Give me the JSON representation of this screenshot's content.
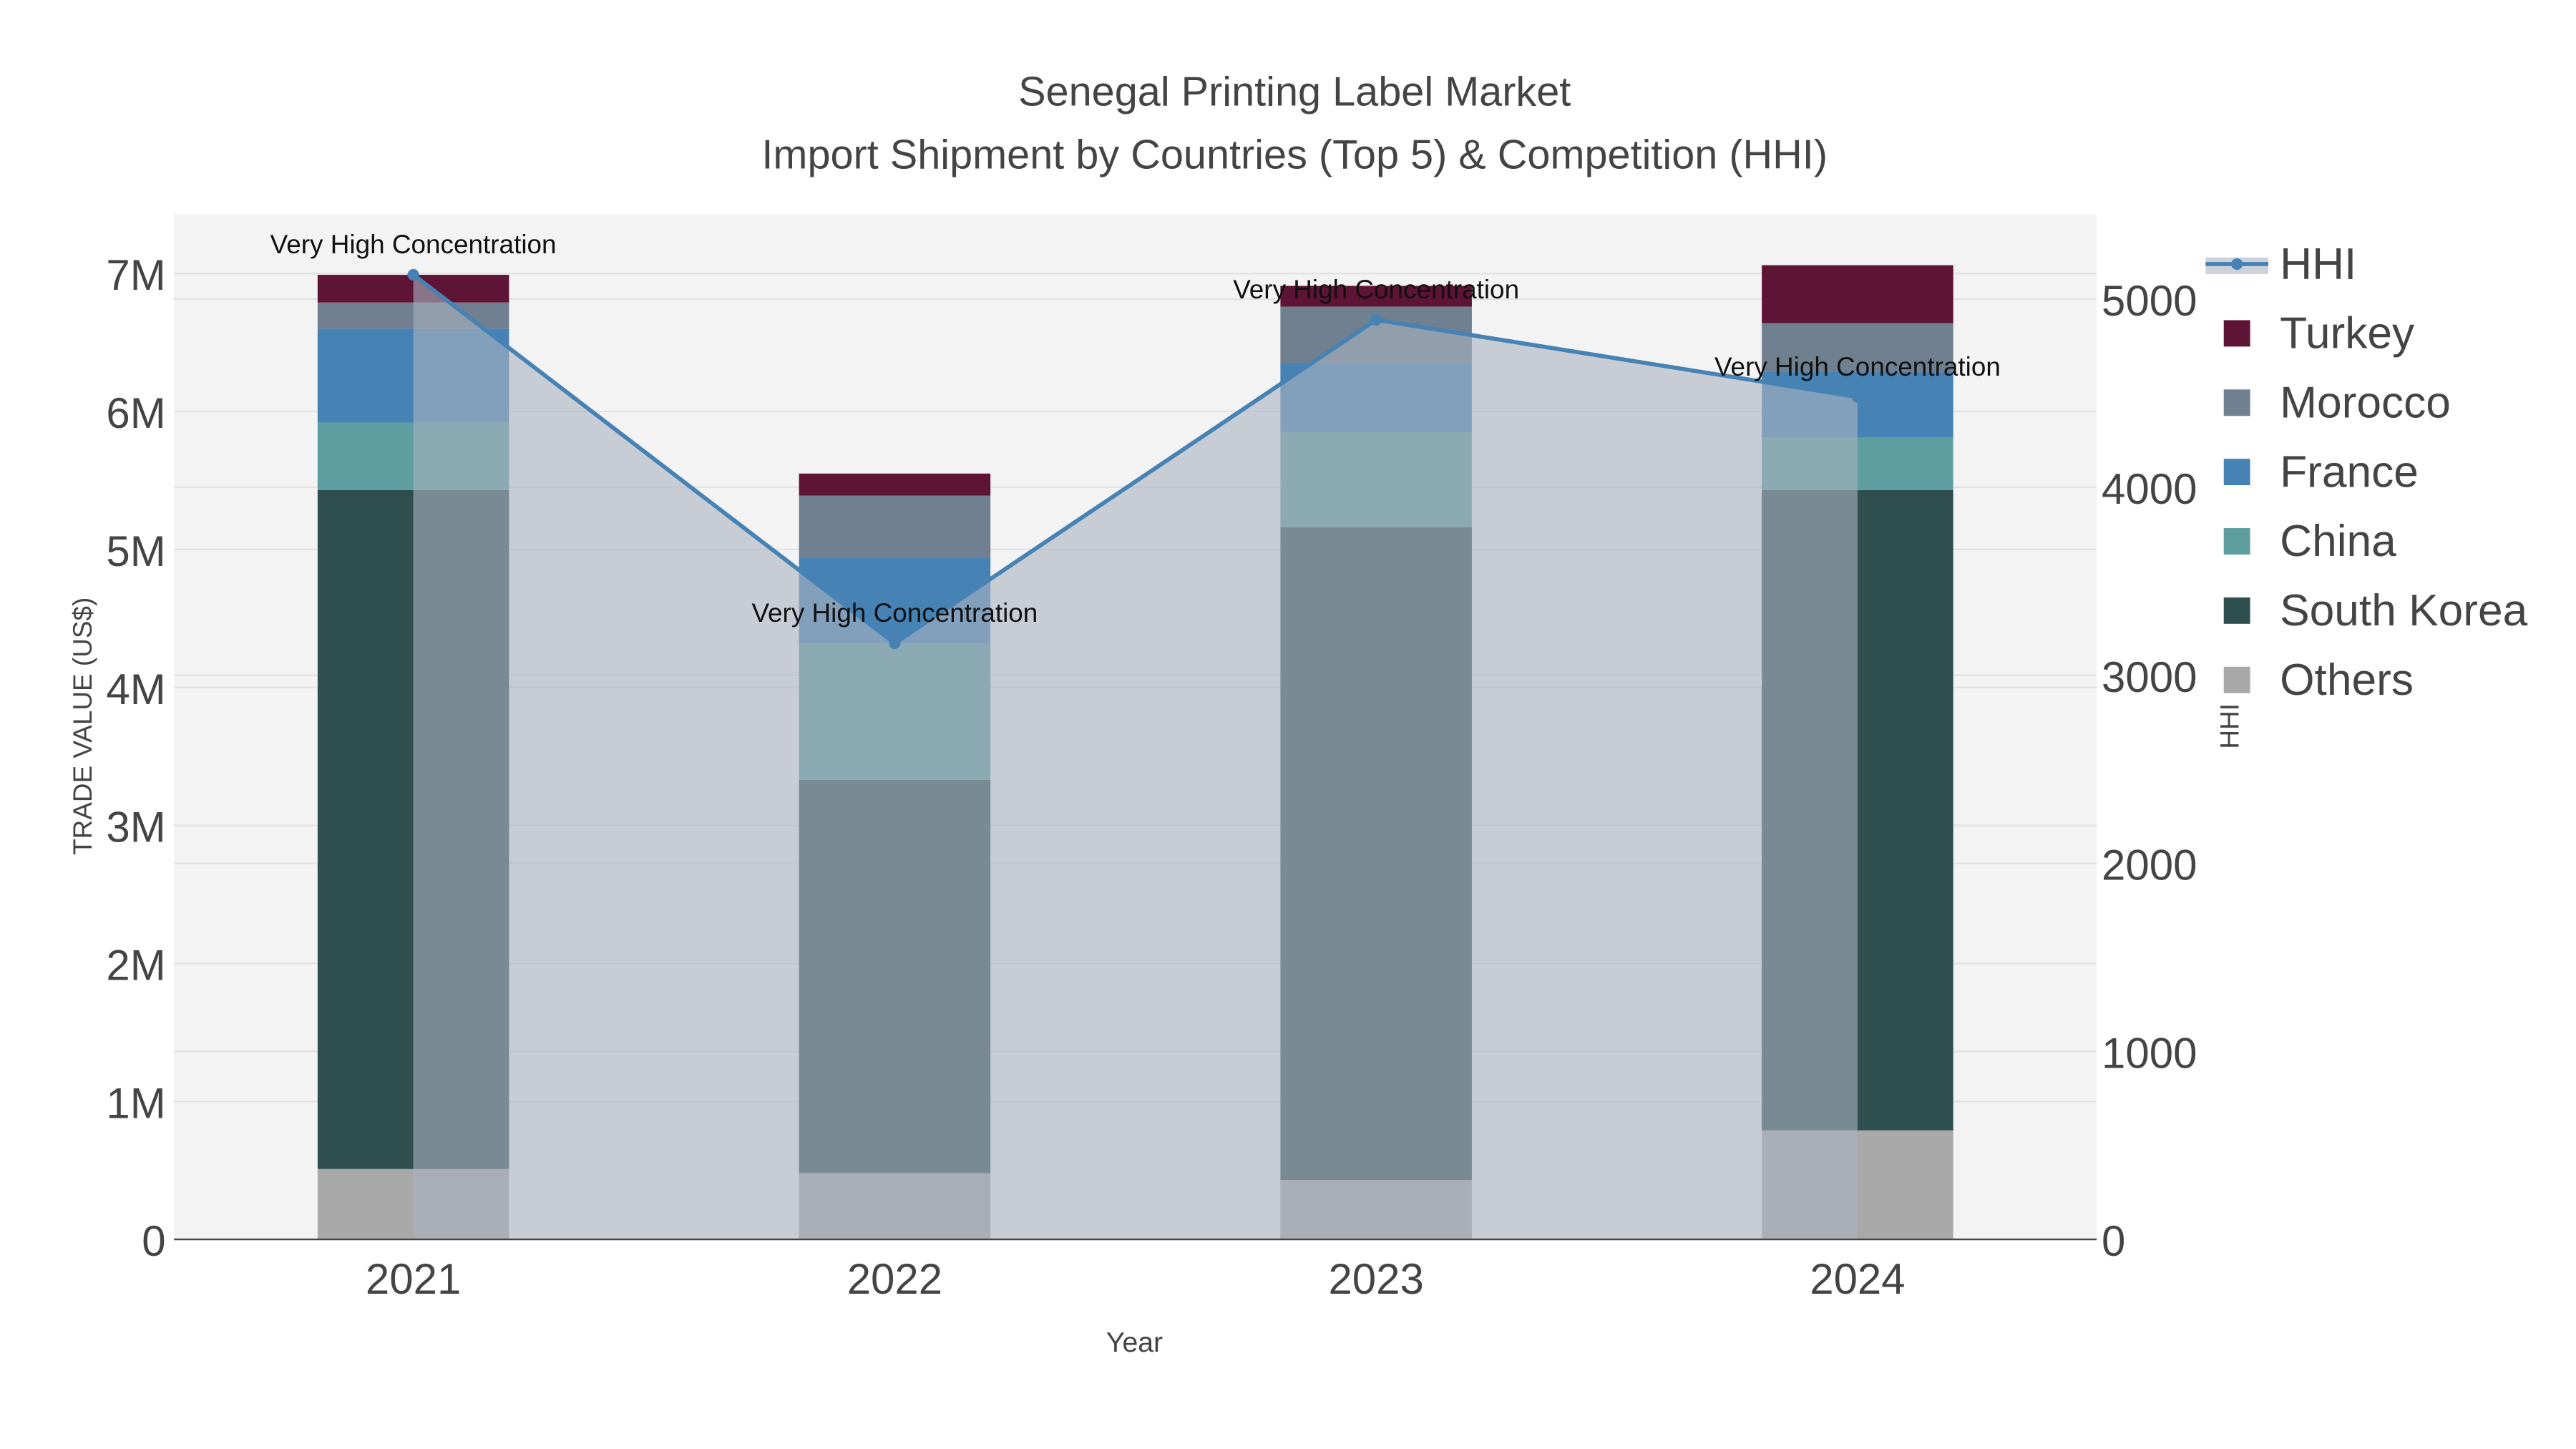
{
  "chart_data": {
    "type": "bar",
    "stacked": true,
    "title": "Senegal Printing Label Market",
    "subtitle": "Import Shipment by Countries (Top 5) & Competition (HHI)",
    "xlabel": "Year",
    "ylabel": "TRADE VALUE (US$)",
    "y2label": "HHI",
    "categories": [
      "2021",
      "2022",
      "2023",
      "2024"
    ],
    "ylim": [
      0,
      7400000
    ],
    "y2lim": [
      0,
      5400
    ],
    "yticks": [
      {
        "v": 0,
        "label": "0"
      },
      {
        "v": 1000000,
        "label": "1M"
      },
      {
        "v": 2000000,
        "label": "2M"
      },
      {
        "v": 3000000,
        "label": "3M"
      },
      {
        "v": 4000000,
        "label": "4M"
      },
      {
        "v": 5000000,
        "label": "5M"
      },
      {
        "v": 6000000,
        "label": "6M"
      },
      {
        "v": 7000000,
        "label": "7M"
      }
    ],
    "y2ticks": [
      {
        "v": 0,
        "label": "0"
      },
      {
        "v": 1000,
        "label": "1000"
      },
      {
        "v": 2000,
        "label": "2000"
      },
      {
        "v": 3000,
        "label": "3000"
      },
      {
        "v": 4000,
        "label": "4000"
      },
      {
        "v": 5000,
        "label": "5000"
      }
    ],
    "series": [
      {
        "name": "Others",
        "color": "#a9a9a9",
        "values": [
          510000,
          480000,
          430000,
          790000
        ]
      },
      {
        "name": "South Korea",
        "color": "#2f4f4f",
        "values": [
          4920000,
          2850000,
          4730000,
          4640000
        ]
      },
      {
        "name": "China",
        "color": "#5f9ea0",
        "values": [
          490000,
          990000,
          690000,
          380000
        ]
      },
      {
        "name": "France",
        "color": "#4682b4",
        "values": [
          680000,
          620000,
          500000,
          480000
        ]
      },
      {
        "name": "Morocco",
        "color": "#708090",
        "values": [
          190000,
          450000,
          410000,
          350000
        ]
      },
      {
        "name": "Turkey",
        "color": "#5e1435",
        "values": [
          200000,
          160000,
          150000,
          420000
        ]
      }
    ],
    "hhi": {
      "name": "HHI",
      "color": "#4682b4",
      "values": [
        5130,
        3170,
        4890,
        4480
      ]
    },
    "annotations": [
      "Very High Concentration",
      "Very High Concentration",
      "Very High Concentration",
      "Very High Concentration"
    ],
    "legend_order": [
      "HHI",
      "Turkey",
      "Morocco",
      "France",
      "China",
      "South Korea",
      "Others"
    ],
    "legend_position": "right",
    "grid": true
  }
}
